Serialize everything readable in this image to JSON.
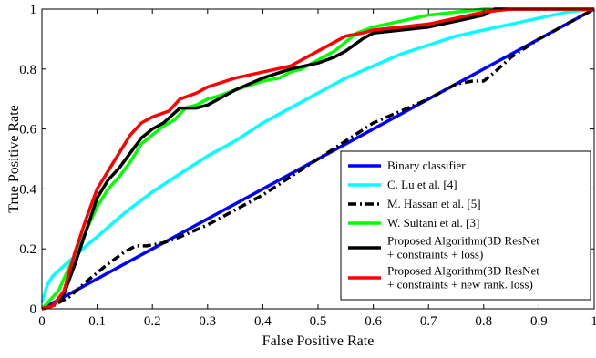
{
  "chart_data": {
    "type": "line",
    "title": "",
    "xlabel": "False Positive Rate",
    "ylabel": "True Positive Rate",
    "xlim": [
      0,
      1
    ],
    "ylim": [
      0,
      1
    ],
    "xticks": [
      "0",
      "0.1",
      "0.2",
      "0.3",
      "0.4",
      "0.5",
      "0.6",
      "0.7",
      "0.8",
      "0.9",
      "1"
    ],
    "yticks": [
      "0",
      "0.2",
      "0.4",
      "0.6",
      "0.8",
      "1"
    ],
    "grid": false,
    "legend_position": "bottom-right",
    "series": [
      {
        "name": "Binary classifier",
        "color": "#0000ff",
        "style": "solid",
        "points": [
          [
            0,
            0
          ],
          [
            1,
            1
          ]
        ]
      },
      {
        "name": "C. Lu et al. [4]",
        "color": "#00ffff",
        "style": "solid",
        "points": [
          [
            0,
            0.02
          ],
          [
            0.01,
            0.08
          ],
          [
            0.02,
            0.11
          ],
          [
            0.05,
            0.16
          ],
          [
            0.08,
            0.21
          ],
          [
            0.1,
            0.24
          ],
          [
            0.15,
            0.32
          ],
          [
            0.2,
            0.39
          ],
          [
            0.25,
            0.45
          ],
          [
            0.3,
            0.51
          ],
          [
            0.35,
            0.56
          ],
          [
            0.4,
            0.62
          ],
          [
            0.45,
            0.67
          ],
          [
            0.5,
            0.72
          ],
          [
            0.55,
            0.77
          ],
          [
            0.6,
            0.81
          ],
          [
            0.65,
            0.85
          ],
          [
            0.7,
            0.88
          ],
          [
            0.75,
            0.91
          ],
          [
            0.8,
            0.93
          ],
          [
            0.85,
            0.95
          ],
          [
            0.9,
            0.97
          ],
          [
            0.95,
            0.99
          ],
          [
            1.0,
            1.0
          ]
        ]
      },
      {
        "name": "M. Hassan et al. [5]",
        "color": "#000000",
        "style": "dashdot",
        "points": [
          [
            0,
            0
          ],
          [
            0.02,
            0.01
          ],
          [
            0.05,
            0.04
          ],
          [
            0.08,
            0.09
          ],
          [
            0.12,
            0.15
          ],
          [
            0.15,
            0.19
          ],
          [
            0.17,
            0.21
          ],
          [
            0.19,
            0.21
          ],
          [
            0.22,
            0.22
          ],
          [
            0.25,
            0.24
          ],
          [
            0.3,
            0.28
          ],
          [
            0.35,
            0.33
          ],
          [
            0.4,
            0.38
          ],
          [
            0.45,
            0.44
          ],
          [
            0.5,
            0.5
          ],
          [
            0.55,
            0.56
          ],
          [
            0.6,
            0.62
          ],
          [
            0.65,
            0.66
          ],
          [
            0.7,
            0.7
          ],
          [
            0.75,
            0.75
          ],
          [
            0.78,
            0.76
          ],
          [
            0.8,
            0.76
          ],
          [
            0.82,
            0.79
          ],
          [
            0.85,
            0.84
          ],
          [
            0.9,
            0.9
          ],
          [
            0.95,
            0.95
          ],
          [
            1.0,
            1.0
          ]
        ]
      },
      {
        "name": "W. Sultani et al. [3]",
        "color": "#00ff00",
        "style": "solid",
        "points": [
          [
            0,
            0.0
          ],
          [
            0.01,
            0.02
          ],
          [
            0.03,
            0.06
          ],
          [
            0.05,
            0.14
          ],
          [
            0.07,
            0.22
          ],
          [
            0.09,
            0.3
          ],
          [
            0.1,
            0.34
          ],
          [
            0.12,
            0.4
          ],
          [
            0.14,
            0.44
          ],
          [
            0.16,
            0.49
          ],
          [
            0.18,
            0.55
          ],
          [
            0.2,
            0.58
          ],
          [
            0.22,
            0.61
          ],
          [
            0.24,
            0.63
          ],
          [
            0.26,
            0.67
          ],
          [
            0.28,
            0.68
          ],
          [
            0.3,
            0.7
          ],
          [
            0.32,
            0.71
          ],
          [
            0.35,
            0.73
          ],
          [
            0.4,
            0.76
          ],
          [
            0.43,
            0.77
          ],
          [
            0.45,
            0.79
          ],
          [
            0.47,
            0.8
          ],
          [
            0.5,
            0.83
          ],
          [
            0.53,
            0.86
          ],
          [
            0.55,
            0.89
          ],
          [
            0.57,
            0.92
          ],
          [
            0.6,
            0.94
          ],
          [
            0.65,
            0.96
          ],
          [
            0.7,
            0.98
          ],
          [
            0.75,
            0.99
          ],
          [
            0.8,
            1.0
          ],
          [
            1.0,
            1.0
          ]
        ]
      },
      {
        "name": "Proposed Algorithm(3D ResNet + constraints + loss)",
        "color": "#000000",
        "style": "solid",
        "points": [
          [
            0,
            0.0
          ],
          [
            0.02,
            0.01
          ],
          [
            0.04,
            0.05
          ],
          [
            0.06,
            0.15
          ],
          [
            0.08,
            0.26
          ],
          [
            0.1,
            0.37
          ],
          [
            0.12,
            0.43
          ],
          [
            0.14,
            0.47
          ],
          [
            0.16,
            0.52
          ],
          [
            0.18,
            0.57
          ],
          [
            0.2,
            0.6
          ],
          [
            0.22,
            0.62
          ],
          [
            0.25,
            0.67
          ],
          [
            0.28,
            0.67
          ],
          [
            0.3,
            0.68
          ],
          [
            0.33,
            0.71
          ],
          [
            0.35,
            0.73
          ],
          [
            0.4,
            0.77
          ],
          [
            0.45,
            0.8
          ],
          [
            0.5,
            0.82
          ],
          [
            0.53,
            0.84
          ],
          [
            0.55,
            0.86
          ],
          [
            0.58,
            0.9
          ],
          [
            0.6,
            0.92
          ],
          [
            0.65,
            0.93
          ],
          [
            0.7,
            0.94
          ],
          [
            0.75,
            0.96
          ],
          [
            0.8,
            0.98
          ],
          [
            0.82,
            1.0
          ],
          [
            1.0,
            1.0
          ]
        ]
      },
      {
        "name": "Proposed Algorithm(3D ResNet + constraints + new rank. loss)",
        "color": "#ff0000",
        "style": "solid",
        "points": [
          [
            0,
            0.0
          ],
          [
            0.02,
            0.01
          ],
          [
            0.04,
            0.06
          ],
          [
            0.06,
            0.19
          ],
          [
            0.08,
            0.3
          ],
          [
            0.1,
            0.4
          ],
          [
            0.12,
            0.46
          ],
          [
            0.14,
            0.52
          ],
          [
            0.16,
            0.58
          ],
          [
            0.18,
            0.62
          ],
          [
            0.2,
            0.64
          ],
          [
            0.23,
            0.66
          ],
          [
            0.25,
            0.7
          ],
          [
            0.28,
            0.72
          ],
          [
            0.3,
            0.74
          ],
          [
            0.35,
            0.77
          ],
          [
            0.4,
            0.79
          ],
          [
            0.45,
            0.81
          ],
          [
            0.5,
            0.86
          ],
          [
            0.53,
            0.89
          ],
          [
            0.55,
            0.91
          ],
          [
            0.58,
            0.92
          ],
          [
            0.6,
            0.93
          ],
          [
            0.65,
            0.94
          ],
          [
            0.7,
            0.95
          ],
          [
            0.75,
            0.97
          ],
          [
            0.8,
            0.99
          ],
          [
            0.85,
            1.0
          ],
          [
            1.0,
            1.0
          ]
        ]
      }
    ],
    "legend_lines": [
      [
        "Binary classifier"
      ],
      [
        "C. Lu et al. [4]"
      ],
      [
        "M. Hassan et al. [5]"
      ],
      [
        "W. Sultani et al. [3]"
      ],
      [
        "Proposed Algorithm(3D ResNet",
        "+ constraints + loss)"
      ],
      [
        "Proposed Algorithm(3D ResNet",
        "+ constraints + new rank. loss)"
      ]
    ]
  }
}
